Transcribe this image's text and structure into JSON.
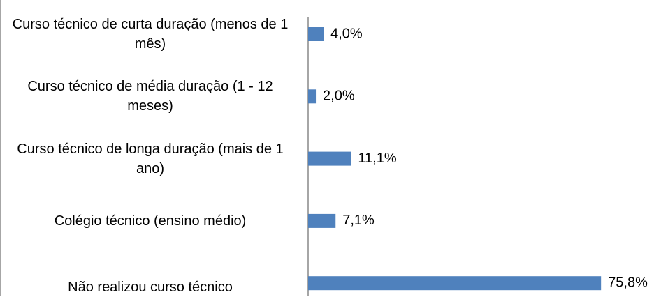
{
  "chart_data": {
    "type": "bar",
    "orientation": "horizontal",
    "categories": [
      "Curso técnico de curta duração (menos de 1 mês)",
      "Curso técnico de média duração (1 - 12 meses)",
      "Curso técnico de longa duração (mais de 1 ano)",
      "Colégio técnico (ensino médio)",
      "Não realizou curso técnico"
    ],
    "values": [
      4.0,
      2.0,
      11.1,
      7.1,
      75.8
    ],
    "value_labels": [
      "4,0%",
      "2,0%",
      "11,1%",
      "7,1%",
      "75,8%"
    ],
    "color": "#4f81bd"
  }
}
